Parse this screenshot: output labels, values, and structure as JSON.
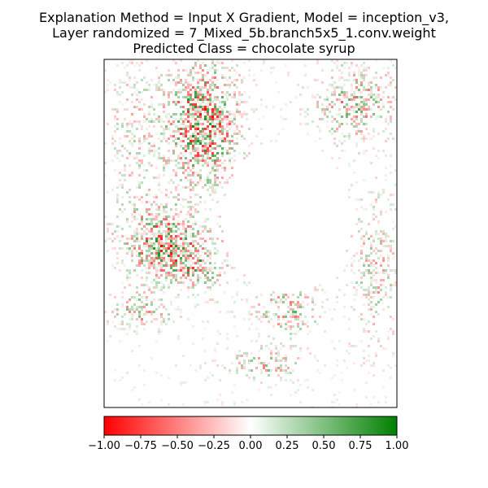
{
  "chart_data": {
    "type": "heatmap",
    "title_lines": [
      "Explanation Method = Input X Gradient, Model = inception_v3,",
      "Layer randomized = 7_Mixed_5b.branch5x5_1.conv.weight",
      "Predicted Class = chocolate syrup"
    ],
    "colorbar": {
      "vmin": -1.0,
      "vmax": 1.0,
      "colors": [
        "#ff0000",
        "#ffffff",
        "#008000"
      ],
      "tick_labels": [
        "−1.00",
        "−0.75",
        "−0.50",
        "−0.25",
        "0.00",
        "0.25",
        "0.50",
        "0.75",
        "1.00"
      ],
      "tick_values": [
        -1.0,
        -0.75,
        -0.5,
        -0.25,
        0.0,
        0.25,
        0.5,
        0.75,
        1.0
      ]
    },
    "axes_ticks_visible": false
  }
}
